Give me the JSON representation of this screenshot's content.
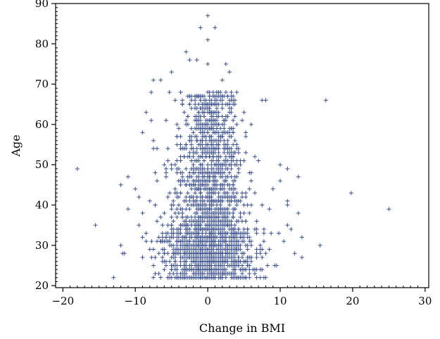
{
  "chart_data": {
    "type": "scatter",
    "title": "",
    "xlabel": "Change in BMI",
    "ylabel": "Age",
    "xlim": [
      -21,
      30.5
    ],
    "ylim": [
      19.5,
      90
    ],
    "xticks": [
      -20,
      -10,
      0,
      10,
      20,
      30
    ],
    "xtick_labels": [
      "−20",
      "−10",
      "0",
      "10",
      "20",
      "30"
    ],
    "yticks": [
      20,
      30,
      40,
      50,
      60,
      70,
      80,
      90
    ],
    "ytick_labels": [
      "20",
      "30",
      "40",
      "50",
      "60",
      "70",
      "80",
      "90"
    ],
    "x_minor_step": 1,
    "y_minor_step": 1,
    "grid": false,
    "legend": "none",
    "marker": "plus",
    "marker_color": "#3a4f8f",
    "axis_color": "#000000",
    "cluster": {
      "count": 2200,
      "x_mean": 0.3,
      "x_sd": 3.2,
      "y_min": 22,
      "y_max": 68,
      "y_mode": 30
    },
    "points": [
      [
        0,
        87
      ],
      [
        -1,
        84
      ],
      [
        1,
        84
      ],
      [
        0,
        81
      ],
      [
        -3,
        78
      ],
      [
        -2.5,
        76
      ],
      [
        -1.5,
        76
      ],
      [
        -5,
        73
      ],
      [
        2.5,
        75
      ],
      [
        0,
        75
      ],
      [
        -7.5,
        71
      ],
      [
        -6.5,
        71
      ],
      [
        -7.8,
        68
      ],
      [
        -5.3,
        68
      ],
      [
        -4.5,
        66
      ],
      [
        7.5,
        66
      ],
      [
        8,
        66
      ],
      [
        16.3,
        66
      ],
      [
        4,
        68
      ],
      [
        3,
        73
      ],
      [
        2,
        71
      ],
      [
        -8.5,
        63
      ],
      [
        -7.8,
        61
      ],
      [
        -9,
        58
      ],
      [
        -7.5,
        56
      ],
      [
        6,
        60
      ],
      [
        -7.5,
        54
      ],
      [
        -7,
        54
      ],
      [
        -6,
        50
      ],
      [
        -18,
        49
      ],
      [
        -11,
        47
      ],
      [
        -12,
        45
      ],
      [
        -10,
        44
      ],
      [
        -9.5,
        42
      ],
      [
        -11,
        39
      ],
      [
        -9,
        38
      ],
      [
        -8,
        41
      ],
      [
        -7,
        46
      ],
      [
        -15.5,
        35
      ],
      [
        -12,
        30
      ],
      [
        -11.5,
        28
      ],
      [
        -9,
        27
      ],
      [
        -8.5,
        33
      ],
      [
        -8,
        29
      ],
      [
        -7.5,
        25
      ],
      [
        -8.5,
        31
      ],
      [
        -9.5,
        35
      ],
      [
        10,
        50
      ],
      [
        11,
        49
      ],
      [
        10,
        46
      ],
      [
        12.5,
        47
      ],
      [
        11,
        41
      ],
      [
        11,
        40
      ],
      [
        9,
        44
      ],
      [
        8.5,
        39
      ],
      [
        11,
        35
      ],
      [
        11.5,
        34
      ],
      [
        12.5,
        38
      ],
      [
        13,
        32
      ],
      [
        10.5,
        31
      ],
      [
        13,
        27
      ],
      [
        12,
        28
      ],
      [
        15.5,
        30
      ],
      [
        9.5,
        25
      ],
      [
        8.5,
        29
      ],
      [
        9.8,
        33
      ],
      [
        19.8,
        43
      ],
      [
        25,
        39
      ],
      [
        7.5,
        24
      ],
      [
        6.5,
        23
      ],
      [
        -5,
        24
      ],
      [
        -6,
        26
      ],
      [
        -4,
        22
      ]
    ]
  }
}
